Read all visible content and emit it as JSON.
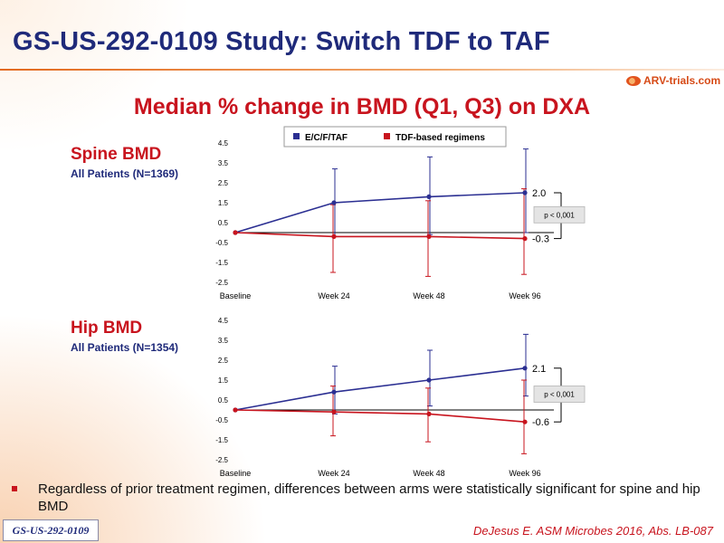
{
  "header": {
    "title": "GS-US-292-0109 Study: Switch TDF to TAF",
    "logo_text": "ARV-trials.com",
    "subtitle": "Median % change in BMD (Q1, Q3) on DXA"
  },
  "colors": {
    "series1": "#2b2f92",
    "series2": "#c8141e"
  },
  "legend": [
    "E/C/F/TAF",
    "TDF-based regimens"
  ],
  "chart_data": [
    {
      "type": "line",
      "title": "Spine BMD",
      "subtitle": "All Patients (N=1369)",
      "categories": [
        "Baseline",
        "Week 24",
        "Week 48",
        "Week 96"
      ],
      "yticks": [
        "4.5",
        "3.5",
        "2.5",
        "1.5",
        "0.5",
        "-0.5",
        "-1.5",
        "-2.5"
      ],
      "ylim": [
        -2.5,
        4.5
      ],
      "series": [
        {
          "name": "E/C/F/TAF",
          "values": [
            0,
            1.5,
            1.8,
            2.0
          ],
          "q1": [
            0,
            -0.2,
            -0.1,
            0.0
          ],
          "q3": [
            0,
            3.2,
            3.8,
            4.2
          ]
        },
        {
          "name": "TDF-based regimens",
          "values": [
            0,
            -0.2,
            -0.2,
            -0.3
          ],
          "q1": [
            0,
            -2.0,
            -2.2,
            -2.1
          ],
          "q3": [
            0,
            1.4,
            1.6,
            2.2
          ]
        }
      ],
      "end_labels": [
        "2.0",
        "-0.3"
      ],
      "pvalue": "p < 0,001"
    },
    {
      "type": "line",
      "title": "Hip BMD",
      "subtitle": "All Patients (N=1354)",
      "categories": [
        "Baseline",
        "Week 24",
        "Week 48",
        "Week 96"
      ],
      "yticks": [
        "4.5",
        "3.5",
        "2.5",
        "1.5",
        "0.5",
        "-0.5",
        "-1.5",
        "-2.5"
      ],
      "ylim": [
        -2.5,
        4.5
      ],
      "series": [
        {
          "name": "E/C/F/TAF",
          "values": [
            0,
            0.9,
            1.5,
            2.1
          ],
          "q1": [
            0,
            -0.2,
            0.2,
            0.7
          ],
          "q3": [
            0,
            2.2,
            3.0,
            3.8
          ]
        },
        {
          "name": "TDF-based regimens",
          "values": [
            0,
            -0.1,
            -0.2,
            -0.6
          ],
          "q1": [
            0,
            -1.3,
            -1.6,
            -2.2
          ],
          "q3": [
            0,
            1.2,
            1.1,
            1.5
          ]
        }
      ],
      "end_labels": [
        "2.1",
        "-0.6"
      ],
      "pvalue": "p < 0,001"
    }
  ],
  "bullet": "Regardless of prior treatment regimen, differences between arms were statistically significant for spine and hip BMD",
  "footer": {
    "tag": "GS-US-292-0109",
    "citation": "DeJesus E. ASM Microbes 2016, Abs. LB-087"
  }
}
